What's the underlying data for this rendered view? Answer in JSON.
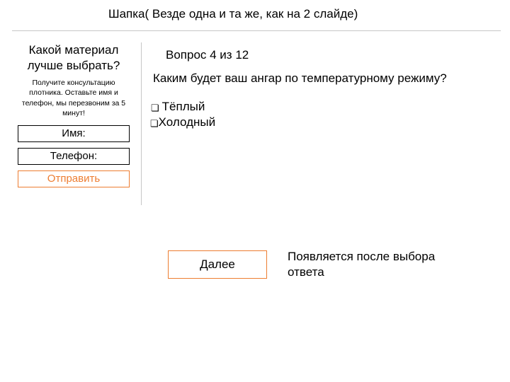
{
  "header": {
    "title": "Шапка( Везде одна и та же, как на 2 слайде)"
  },
  "sidebar": {
    "title": "Какой материал лучше выбрать?",
    "subtitle": "Получите консультацию плотника. Оставьте имя и телефон, мы перезвоним за 5 минут!",
    "name_label": "Имя:",
    "phone_label": "Телефон:",
    "submit_label": "Отправить"
  },
  "quiz": {
    "progress": "Вопрос 4 из 12",
    "question": "Каким будет ваш ангар по температурному режиму?",
    "options": [
      "Тёплый",
      "Холодный"
    ],
    "next_label": "Далее"
  },
  "note": "Появляется после выбора ответа",
  "colors": {
    "accent": "#ed7d31",
    "divider": "#c6c6c6",
    "text": "#000000",
    "background": "#ffffff"
  }
}
